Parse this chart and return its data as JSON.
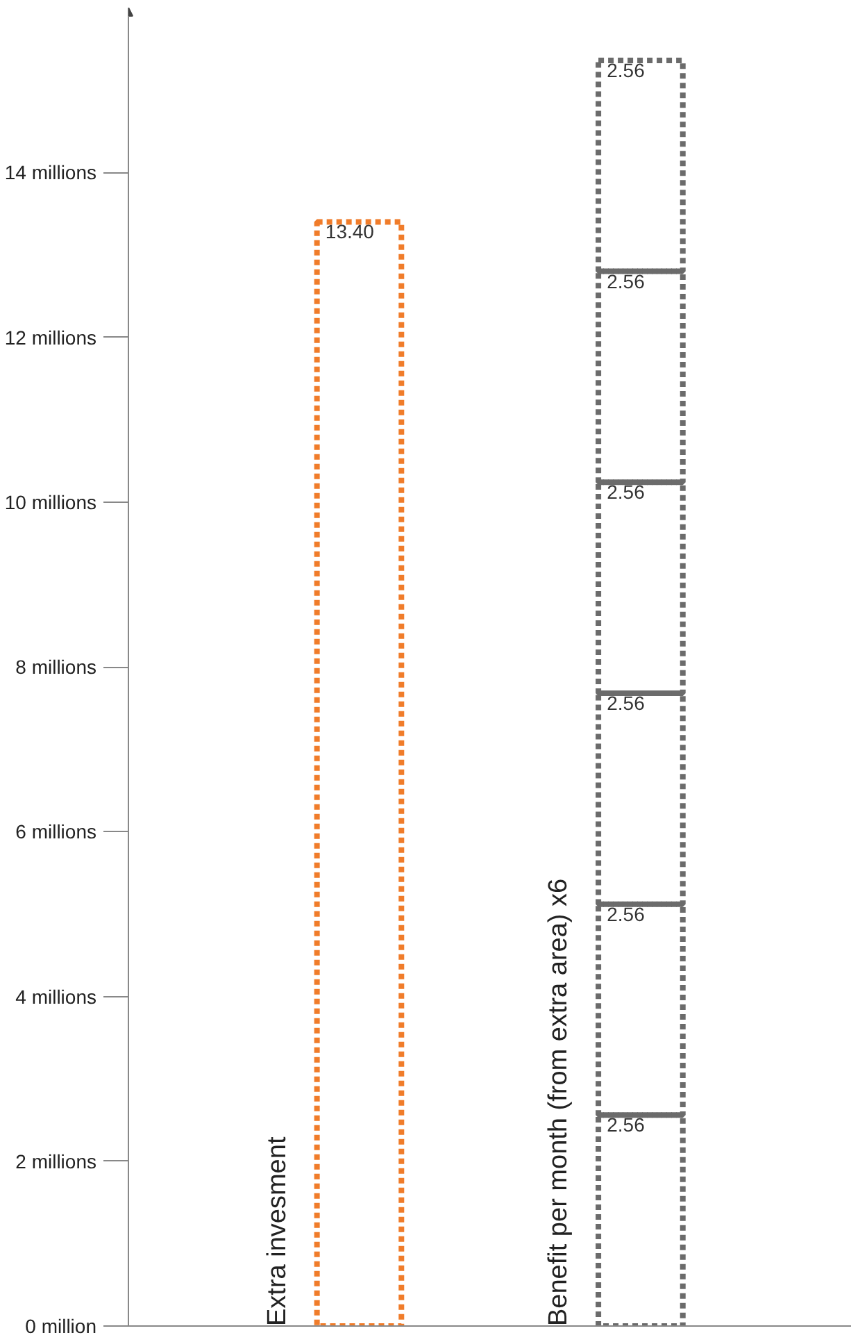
{
  "chart_data": {
    "type": "bar",
    "stacked": true,
    "categories": [
      "Extra invesment",
      "Benefit per month (from extra area) x6"
    ],
    "series": [
      {
        "color": "#f07c2a",
        "values": [
          13.4,
          null
        ],
        "value_labels": [
          "13.40",
          null
        ]
      },
      {
        "color": "#6b6b6b",
        "values": [
          null,
          2.56
        ],
        "value_labels": [
          null,
          "2.56"
        ]
      },
      {
        "color": "#6b6b6b",
        "values": [
          null,
          2.56
        ],
        "value_labels": [
          null,
          "2.56"
        ]
      },
      {
        "color": "#6b6b6b",
        "values": [
          null,
          2.56
        ],
        "value_labels": [
          null,
          "2.56"
        ]
      },
      {
        "color": "#6b6b6b",
        "values": [
          null,
          2.56
        ],
        "value_labels": [
          null,
          "2.56"
        ]
      },
      {
        "color": "#6b6b6b",
        "values": [
          null,
          2.56
        ],
        "value_labels": [
          null,
          "2.56"
        ]
      },
      {
        "color": "#6b6b6b",
        "values": [
          null,
          2.56
        ],
        "value_labels": [
          null,
          "2.56"
        ]
      }
    ],
    "line_style": "dashed",
    "ylim": [
      0,
      16
    ],
    "yticks": [
      {
        "value": 0,
        "label": "0 million"
      },
      {
        "value": 2,
        "label": "2 millions"
      },
      {
        "value": 4,
        "label": "4 millions"
      },
      {
        "value": 6,
        "label": "6 millions"
      },
      {
        "value": 8,
        "label": "8 millions"
      },
      {
        "value": 10,
        "label": "10 millions"
      },
      {
        "value": 12,
        "label": "12 millions"
      },
      {
        "value": 14,
        "label": "14 millions"
      }
    ],
    "grid": false
  }
}
